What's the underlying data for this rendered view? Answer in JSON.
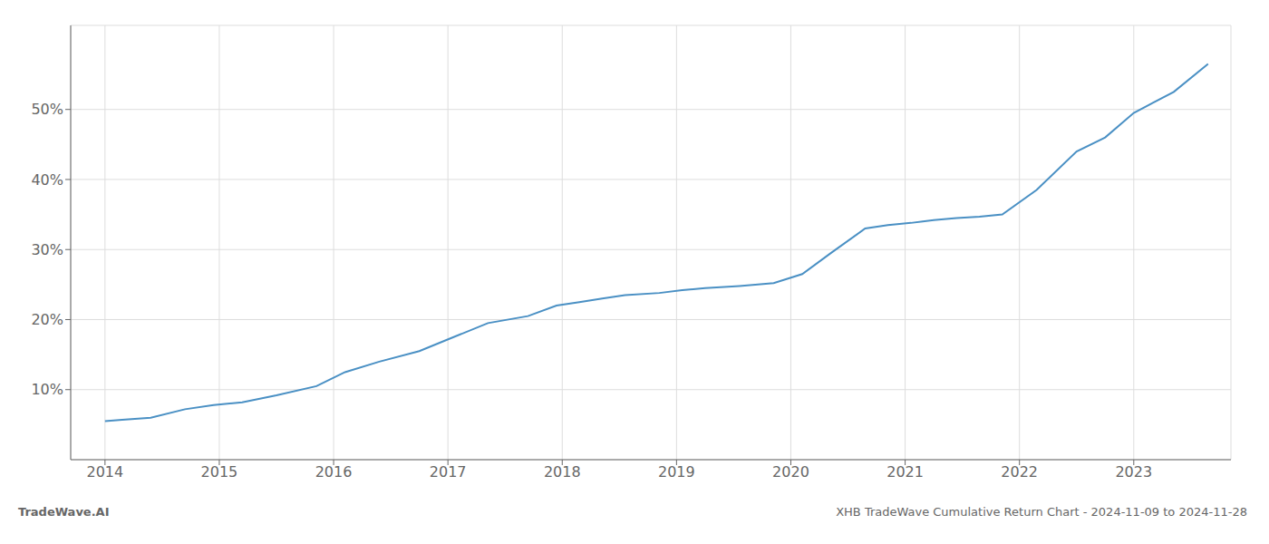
{
  "chart_data": {
    "type": "line",
    "x": [
      2014.0,
      2014.15,
      2014.4,
      2014.7,
      2014.95,
      2015.2,
      2015.5,
      2015.85,
      2016.1,
      2016.4,
      2016.75,
      2017.05,
      2017.35,
      2017.7,
      2017.95,
      2018.15,
      2018.35,
      2018.55,
      2018.85,
      2019.05,
      2019.25,
      2019.55,
      2019.85,
      2020.1,
      2020.35,
      2020.65,
      2020.85,
      2021.05,
      2021.25,
      2021.45,
      2021.65,
      2021.85,
      2022.15,
      2022.5,
      2022.75,
      2023.0,
      2023.35,
      2023.65
    ],
    "values": [
      5.5,
      5.7,
      6.0,
      7.2,
      7.8,
      8.2,
      9.2,
      10.5,
      12.5,
      14.0,
      15.5,
      17.5,
      19.5,
      20.5,
      22.0,
      22.5,
      23.0,
      23.5,
      23.8,
      24.2,
      24.5,
      24.8,
      25.2,
      26.5,
      29.5,
      33.0,
      33.5,
      33.8,
      34.2,
      34.5,
      34.7,
      35.0,
      38.5,
      44.0,
      46.0,
      49.5,
      52.5,
      56.5
    ],
    "color": "#4a90c4",
    "xlim": [
      2013.7,
      2023.85
    ],
    "ylim": [
      0,
      62
    ],
    "xticks": [
      2014,
      2015,
      2016,
      2017,
      2018,
      2019,
      2020,
      2021,
      2022,
      2023
    ],
    "yticks": [
      {
        "value": 10,
        "label": "10%"
      },
      {
        "value": 20,
        "label": "20%"
      },
      {
        "value": 30,
        "label": "30%"
      },
      {
        "value": 40,
        "label": "40%"
      },
      {
        "value": 50,
        "label": "50%"
      }
    ],
    "grid": true,
    "annotations": [
      "TradeWave.AI",
      "XHB TradeWave Cumulative Return Chart - 2024-11-09 to 2024-11-28"
    ]
  }
}
